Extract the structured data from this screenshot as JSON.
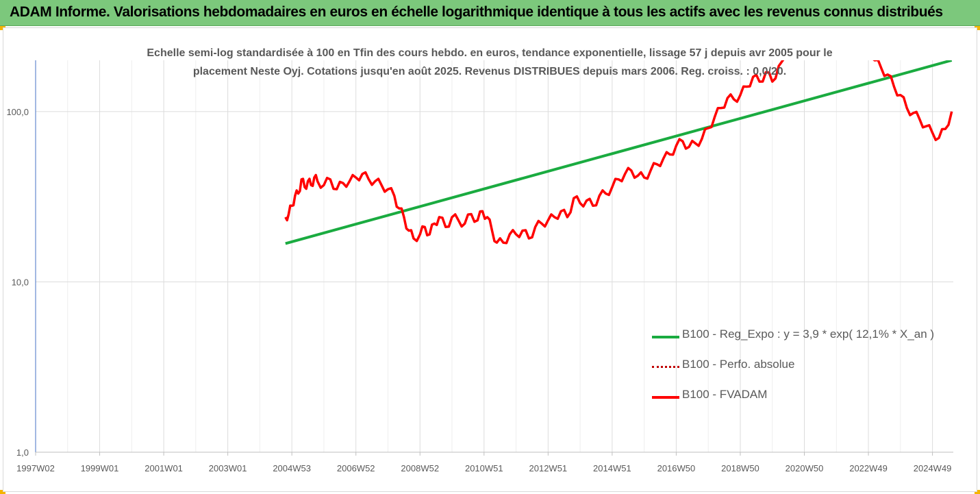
{
  "banner": {
    "title": "ADAM Informe. Valorisations hebdomadaires en euros en échelle logarithmique identique à tous les actifs avec les revenus connus distribués"
  },
  "colors": {
    "banner_bg": "#7cc87c",
    "regression": "#1aab40",
    "fvadam": "#ff0000",
    "perf": "#c00000",
    "grid": "#dcdcdc",
    "axis_text": "#595959"
  },
  "chart_data": {
    "type": "line",
    "subtitle_lines": [
      "Echelle semi-log standardisée à 100 en Tfin des cours hebdo. en euros, tendance exponentielle, lissage 57 j depuis avr 2005 pour le",
      "placement Neste Oyj. Cotations jusqu'en août 2025.  Revenus DISTRIBUES depuis mars 2006. Reg. croiss. : 0,0/20."
    ],
    "y_scale": "log",
    "ylim": [
      1,
      200
    ],
    "y_ticks": [
      "1,0",
      "10,0",
      "100,0"
    ],
    "y_tick_values": [
      1,
      10,
      100
    ],
    "xlim": [
      1997.0,
      2025.65
    ],
    "x_ticks": [
      "1997W02",
      "1999W01",
      "2001W01",
      "2003W01",
      "2004W53",
      "2006W52",
      "2008W52",
      "2010W51",
      "2012W51",
      "2014W51",
      "2016W50",
      "2018W50",
      "2020W50",
      "2022W49",
      "2024W49"
    ],
    "x_tick_values": [
      1997.0,
      1999.0,
      2001.0,
      2003.0,
      2005.0,
      2007.0,
      2009.0,
      2011.0,
      2013.0,
      2015.0,
      2017.0,
      2019.0,
      2021.0,
      2023.0,
      2025.0
    ],
    "grid": true,
    "legend_position": "bottom-right",
    "series": [
      {
        "name": "B100 - Reg_Expo : y = 3,9 * exp( 12,1% *  X_an )",
        "style": "solid",
        "x": [
          2004.8,
          2025.6
        ],
        "y": [
          16.8,
          200
        ]
      },
      {
        "name": "B100 - Perfo. absolue",
        "style": "dotted",
        "x": [],
        "y": []
      },
      {
        "name": "B100 - FVADAM",
        "style": "solid",
        "x": [
          2004.8,
          2004.9,
          2005.0,
          2005.1,
          2005.2,
          2005.3,
          2005.4,
          2005.5,
          2005.6,
          2005.7,
          2005.8,
          2006.0,
          2006.2,
          2006.4,
          2006.6,
          2006.8,
          2007.0,
          2007.2,
          2007.4,
          2007.6,
          2007.8,
          2008.0,
          2008.2,
          2008.35,
          2008.5,
          2008.65,
          2008.8,
          2009.0,
          2009.15,
          2009.3,
          2009.45,
          2009.6,
          2009.8,
          2010.0,
          2010.2,
          2010.4,
          2010.6,
          2010.8,
          2010.95,
          2011.1,
          2011.25,
          2011.4,
          2011.6,
          2011.8,
          2012.0,
          2012.2,
          2012.4,
          2012.6,
          2012.8,
          2013.0,
          2013.2,
          2013.4,
          2013.6,
          2013.8,
          2014.0,
          2014.2,
          2014.4,
          2014.6,
          2014.8,
          2015.0,
          2015.2,
          2015.4,
          2015.6,
          2015.8,
          2016.0,
          2016.2,
          2016.4,
          2016.6,
          2016.8,
          2017.0,
          2017.2,
          2017.4,
          2017.6,
          2017.8,
          2018.0,
          2018.2,
          2018.4,
          2018.6,
          2018.8,
          2019.0,
          2019.2,
          2019.4,
          2019.6,
          2019.8,
          2020.0,
          2020.2,
          2020.6,
          2021.0,
          2021.4,
          2021.8,
          2022.2,
          2022.6,
          2023.0,
          2023.2,
          2023.4,
          2023.6,
          2023.8,
          2024.0,
          2024.2,
          2024.4,
          2024.6,
          2024.8,
          2025.0,
          2025.2,
          2025.4,
          2025.6
        ],
        "y": [
          24,
          25,
          28,
          32,
          33,
          40,
          36,
          39,
          37,
          41,
          39,
          37,
          40,
          35,
          38,
          39,
          41,
          43,
          40,
          39,
          37,
          35,
          32,
          27,
          24,
          20,
          18,
          19,
          21,
          19,
          22,
          24,
          21,
          24,
          23,
          22,
          25,
          23,
          26,
          24,
          20,
          17,
          17,
          19,
          19,
          20,
          18,
          21,
          22,
          23,
          24,
          26,
          24,
          31,
          29,
          30,
          28,
          32,
          33,
          36,
          40,
          43,
          45,
          42,
          41,
          45,
          49,
          53,
          56,
          63,
          67,
          62,
          65,
          69,
          80,
          93,
          105,
          120,
          118,
          125,
          140,
          160,
          150,
          170,
          150,
          185,
          210,
          230,
          235,
          225,
          215,
          220,
          240,
          200,
          180,
          165,
          140,
          125,
          105,
          98,
          90,
          82,
          75,
          70,
          79,
          100
        ]
      }
    ]
  }
}
